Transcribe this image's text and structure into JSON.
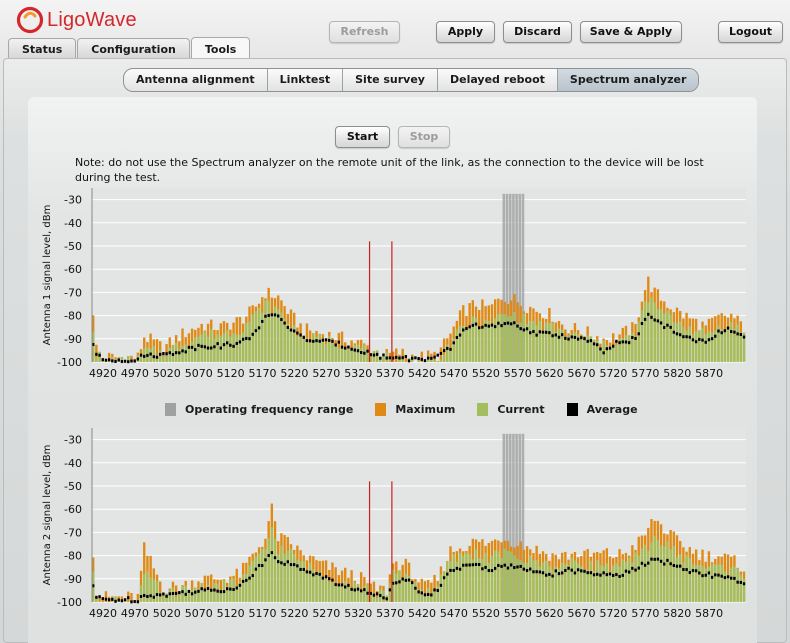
{
  "app": {
    "brand": "LigoWave"
  },
  "top_tabs": [
    {
      "label": "Status"
    },
    {
      "label": "Configuration"
    },
    {
      "label": "Tools"
    }
  ],
  "toolbar": {
    "refresh_label": "Refresh",
    "apply_label": "Apply",
    "discard_label": "Discard",
    "save_apply_label": "Save & Apply",
    "logout_label": "Logout"
  },
  "sub_tabs": [
    {
      "label": "Antenna alignment"
    },
    {
      "label": "Linktest"
    },
    {
      "label": "Site survey"
    },
    {
      "label": "Delayed reboot"
    },
    {
      "label": "Spectrum analyzer"
    }
  ],
  "controls": {
    "start_label": "Start",
    "stop_label": "Stop"
  },
  "note": "Note: do not use the Spectrum analyzer on the remote unit of the link, as the connection to the device will be lost during the test.",
  "colors": {
    "brand_red": "#d2282c",
    "operating": "#a0a0a0",
    "maximum": "#e08a16",
    "current": "#a3bf5d",
    "average": "#000000",
    "marker": "#c8201c"
  },
  "legend": [
    {
      "label": "Operating frequency range",
      "color": "#a0a0a0"
    },
    {
      "label": "Maximum",
      "color": "#e08a16"
    },
    {
      "label": "Current",
      "color": "#a3bf5d"
    },
    {
      "label": "Average",
      "color": "#000000"
    }
  ],
  "chart_data": [
    {
      "type": "bar",
      "ylabel": "Antenna 1 signal level, dBm",
      "ylim": [
        -100,
        -25
      ],
      "yticks": [
        -30,
        -40,
        -50,
        -60,
        -70,
        -80,
        -90,
        -100
      ],
      "xlim": [
        4920,
        5945
      ],
      "xticks": [
        4920,
        4970,
        5020,
        5070,
        5120,
        5170,
        5220,
        5270,
        5320,
        5370,
        5420,
        5470,
        5520,
        5570,
        5620,
        5670,
        5720,
        5770,
        5820,
        5870
      ],
      "grid": true,
      "operating_range": [
        5565,
        5595
      ],
      "markers": [
        5355,
        5390
      ],
      "anchors_freq": [
        4920,
        4925,
        4935,
        4990,
        5000,
        5030,
        5060,
        5090,
        5120,
        5150,
        5170,
        5190,
        5210,
        5230,
        5250,
        5300,
        5340,
        5360,
        5380,
        5400,
        5430,
        5460,
        5480,
        5500,
        5520,
        5540,
        5560,
        5580,
        5600,
        5620,
        5640,
        5660,
        5680,
        5700,
        5720,
        5740,
        5770,
        5780,
        5790,
        5800,
        5820,
        5840,
        5860,
        5880,
        5900,
        5920,
        5940
      ],
      "anchors_maximum": [
        -78,
        -94,
        -98,
        -98,
        -89,
        -94,
        -88,
        -84,
        -85,
        -82,
        -78,
        -70,
        -72,
        -80,
        -86,
        -89,
        -92,
        -95,
        -97,
        -96,
        -98,
        -97,
        -88,
        -78,
        -75,
        -77,
        -72,
        -73,
        -76,
        -78,
        -80,
        -85,
        -86,
        -88,
        -90,
        -89,
        -85,
        -72,
        -65,
        -70,
        -75,
        -79,
        -82,
        -85,
        -81,
        -80,
        -85
      ],
      "anchors_current": [
        -85,
        -96,
        -99,
        -99,
        -95,
        -96,
        -92,
        -88,
        -88,
        -86,
        -81,
        -75,
        -78,
        -84,
        -89,
        -91,
        -94,
        -96,
        -98,
        -98,
        -99,
        -98,
        -92,
        -85,
        -82,
        -84,
        -80,
        -80,
        -82,
        -84,
        -85,
        -88,
        -89,
        -90,
        -93,
        -91,
        -88,
        -79,
        -72,
        -76,
        -80,
        -83,
        -86,
        -88,
        -85,
        -84,
        -87
      ],
      "anchors_average": [
        -92,
        -97,
        -99,
        -99,
        -97,
        -97,
        -95,
        -93,
        -93,
        -92,
        -88,
        -81,
        -80,
        -86,
        -90,
        -92,
        -95,
        -97,
        -98,
        -98,
        -99,
        -98,
        -94,
        -86,
        -84,
        -85,
        -84,
        -84,
        -86,
        -88,
        -88,
        -89,
        -90,
        -91,
        -96,
        -92,
        -90,
        -84,
        -80,
        -82,
        -85,
        -88,
        -91,
        -91,
        -87,
        -86,
        -90
      ]
    },
    {
      "type": "bar",
      "ylabel": "Antenna 2 signal level, dBm",
      "ylim": [
        -100,
        -25
      ],
      "yticks": [
        -30,
        -40,
        -50,
        -60,
        -70,
        -80,
        -90,
        -100
      ],
      "xlim": [
        4920,
        5945
      ],
      "xticks": [
        4920,
        4970,
        5020,
        5070,
        5120,
        5170,
        5220,
        5270,
        5320,
        5370,
        5420,
        5470,
        5520,
        5570,
        5620,
        5670,
        5720,
        5770,
        5820,
        5870
      ],
      "grid": true,
      "operating_range": [
        5565,
        5595
      ],
      "markers": [
        5355,
        5390
      ],
      "anchors_freq": [
        4920,
        4925,
        4935,
        4990,
        5000,
        5030,
        5060,
        5090,
        5120,
        5150,
        5170,
        5190,
        5200,
        5210,
        5230,
        5250,
        5280,
        5300,
        5340,
        5360,
        5380,
        5390,
        5410,
        5440,
        5460,
        5480,
        5500,
        5520,
        5540,
        5560,
        5580,
        5600,
        5620,
        5640,
        5660,
        5680,
        5700,
        5720,
        5740,
        5760,
        5780,
        5800,
        5820,
        5840,
        5860,
        5880,
        5900,
        5920,
        5940
      ],
      "anchors_maximum": [
        -78,
        -95,
        -98,
        -98,
        -77,
        -94,
        -93,
        -90,
        -90,
        -88,
        -80,
        -72,
        -60,
        -72,
        -75,
        -80,
        -84,
        -86,
        -90,
        -94,
        -95,
        -83,
        -84,
        -94,
        -90,
        -78,
        -76,
        -74,
        -75,
        -72,
        -74,
        -76,
        -78,
        -80,
        -80,
        -79,
        -80,
        -79,
        -80,
        -78,
        -73,
        -64,
        -70,
        -75,
        -78,
        -80,
        -80,
        -82,
        -85
      ],
      "anchors_current": [
        -86,
        -97,
        -99,
        -99,
        -88,
        -96,
        -95,
        -93,
        -93,
        -91,
        -84,
        -77,
        -68,
        -77,
        -79,
        -84,
        -88,
        -90,
        -93,
        -96,
        -97,
        -87,
        -88,
        -96,
        -93,
        -82,
        -80,
        -79,
        -81,
        -79,
        -80,
        -82,
        -83,
        -84,
        -84,
        -83,
        -84,
        -84,
        -85,
        -83,
        -79,
        -72,
        -76,
        -80,
        -83,
        -85,
        -85,
        -86,
        -88
      ],
      "anchors_average": [
        -93,
        -98,
        -99,
        -99,
        -97,
        -97,
        -96,
        -95,
        -95,
        -93,
        -88,
        -82,
        -78,
        -82,
        -84,
        -86,
        -89,
        -92,
        -95,
        -97,
        -98,
        -91,
        -90,
        -97,
        -95,
        -86,
        -85,
        -84,
        -86,
        -84,
        -85,
        -86,
        -87,
        -88,
        -86,
        -87,
        -88,
        -88,
        -89,
        -87,
        -84,
        -82,
        -83,
        -85,
        -87,
        -88,
        -89,
        -90,
        -92
      ]
    }
  ]
}
